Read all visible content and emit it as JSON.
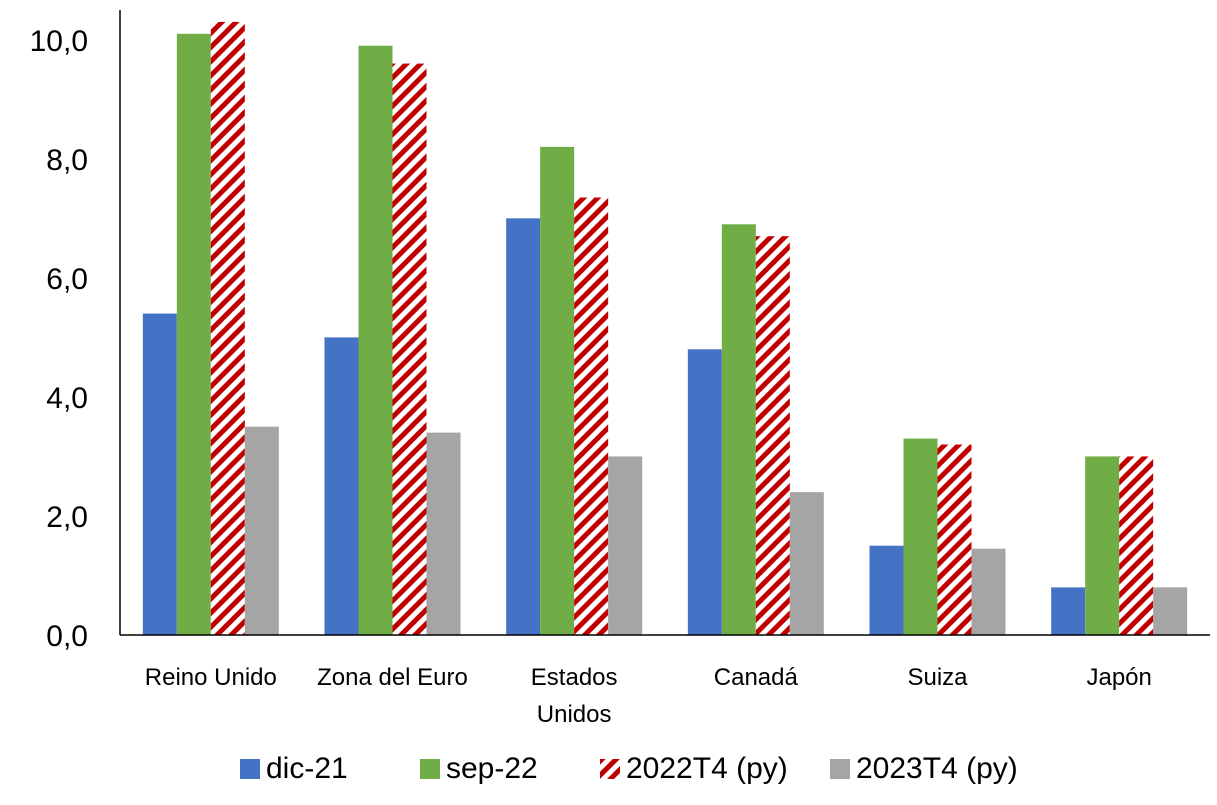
{
  "chart_data": {
    "type": "bar",
    "title": "",
    "xlabel": "",
    "ylabel": "",
    "categories": [
      [
        "Reino Unido"
      ],
      [
        "Zona del Euro"
      ],
      [
        "Estados",
        "Unidos"
      ],
      [
        "Canadá"
      ],
      [
        "Suiza"
      ],
      [
        "Japón"
      ]
    ],
    "ylim": [
      0,
      10.5
    ],
    "yticks": [
      "0,0",
      "2,0",
      "4,0",
      "6,0",
      "8,0",
      "10,0"
    ],
    "ytick_values": [
      0,
      2,
      4,
      6,
      8,
      10
    ],
    "legend_position": "bottom",
    "grid": false,
    "series": [
      {
        "name": "dic-21",
        "color": "#4472C4",
        "pattern": "solid",
        "values": [
          5.4,
          5.0,
          7.0,
          4.8,
          1.5,
          0.8
        ]
      },
      {
        "name": "sep-22",
        "color": "#70AD47",
        "pattern": "solid",
        "values": [
          10.1,
          9.9,
          8.2,
          6.9,
          3.3,
          3.0
        ]
      },
      {
        "name": "2022T4 (py)",
        "color": "#C00000",
        "pattern": "diagonal-stripes",
        "values": [
          10.3,
          9.6,
          7.35,
          6.7,
          3.2,
          3.0
        ]
      },
      {
        "name": "2023T4 (py)",
        "color": "#A5A5A5",
        "pattern": "solid",
        "values": [
          3.5,
          3.4,
          3.0,
          2.4,
          1.45,
          0.8
        ]
      }
    ]
  }
}
